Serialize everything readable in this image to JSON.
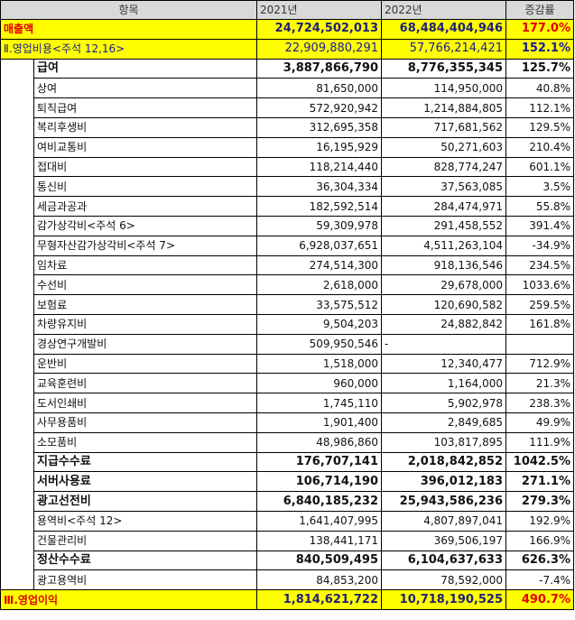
{
  "header": {
    "item": "항목",
    "y2021": "2021년",
    "y2022": "2022년",
    "rate": "증감률"
  },
  "revenue": {
    "label": "매출액",
    "y2021": "24,724,502,013",
    "y2022": "68,484,404,946",
    "rate": "177.0%"
  },
  "opex": {
    "label": "Ⅱ.영업비용<주석 12,16>",
    "y2021": "22,909,880,291",
    "y2022": "57,766,214,421",
    "rate": "152.1%"
  },
  "items": [
    {
      "label": "급여",
      "y2021": "3,887,866,790",
      "y2022": "8,776,355,345",
      "rate": "125.7%",
      "bold": true
    },
    {
      "label": "상여",
      "y2021": "81,650,000",
      "y2022": "114,950,000",
      "rate": "40.8%"
    },
    {
      "label": "퇴직급여",
      "y2021": "572,920,942",
      "y2022": "1,214,884,805",
      "rate": "112.1%"
    },
    {
      "label": "복리후생비",
      "y2021": "312,695,358",
      "y2022": "717,681,562",
      "rate": "129.5%"
    },
    {
      "label": "여비교통비",
      "y2021": "16,195,929",
      "y2022": "50,271,603",
      "rate": "210.4%"
    },
    {
      "label": "접대비",
      "y2021": "118,214,440",
      "y2022": "828,774,247",
      "rate": "601.1%"
    },
    {
      "label": "통신비",
      "y2021": "36,304,334",
      "y2022": "37,563,085",
      "rate": "3.5%"
    },
    {
      "label": "세금과공과",
      "y2021": "182,592,514",
      "y2022": "284,474,971",
      "rate": "55.8%"
    },
    {
      "label": "감가상각비<주석 6>",
      "y2021": "59,309,978",
      "y2022": "291,458,552",
      "rate": "391.4%"
    },
    {
      "label": "무형자산감가상각비<주석 7>",
      "y2021": "6,928,037,651",
      "y2022": "4,511,263,104",
      "rate": "-34.9%"
    },
    {
      "label": "임차료",
      "y2021": "274,514,300",
      "y2022": "918,136,546",
      "rate": "234.5%"
    },
    {
      "label": "수선비",
      "y2021": "2,618,000",
      "y2022": "29,678,000",
      "rate": "1033.6%"
    },
    {
      "label": "보험료",
      "y2021": "33,575,512",
      "y2022": "120,690,582",
      "rate": "259.5%"
    },
    {
      "label": "차량유지비",
      "y2021": "9,504,203",
      "y2022": "24,882,842",
      "rate": "161.8%"
    },
    {
      "label": "경상연구개발비",
      "y2021": "509,950,546",
      "y2022": "-",
      "rate": "",
      "y2022_left": true
    },
    {
      "label": "운반비",
      "y2021": "1,518,000",
      "y2022": "12,340,477",
      "rate": "712.9%"
    },
    {
      "label": "교육훈련비",
      "y2021": "960,000",
      "y2022": "1,164,000",
      "rate": "21.3%"
    },
    {
      "label": "도서인쇄비",
      "y2021": "1,745,110",
      "y2022": "5,902,978",
      "rate": "238.3%"
    },
    {
      "label": "사무용품비",
      "y2021": "1,901,400",
      "y2022": "2,849,685",
      "rate": "49.9%"
    },
    {
      "label": "소모품비",
      "y2021": "48,986,860",
      "y2022": "103,817,895",
      "rate": "111.9%"
    },
    {
      "label": "지급수수료",
      "y2021": "176,707,141",
      "y2022": "2,018,842,852",
      "rate": "1042.5%",
      "bold": true
    },
    {
      "label": "서버사용료",
      "y2021": "106,714,190",
      "y2022": "396,012,183",
      "rate": "271.1%",
      "bold": true
    },
    {
      "label": "광고선전비",
      "y2021": "6,840,185,232",
      "y2022": "25,943,586,236",
      "rate": "279.3%",
      "bold": true
    },
    {
      "label": "용역비<주석 12>",
      "y2021": "1,641,407,995",
      "y2022": "4,807,897,041",
      "rate": "192.9%"
    },
    {
      "label": "건물관리비",
      "y2021": "138,441,171",
      "y2022": "369,506,197",
      "rate": "166.9%"
    },
    {
      "label": "정산수수료",
      "y2021": "840,509,495",
      "y2022": "6,104,637,633",
      "rate": "626.3%",
      "bold": true
    },
    {
      "label": "광고용역비",
      "y2021": "84,853,200",
      "y2022": "78,592,000",
      "rate": "-7.4%"
    }
  ],
  "op_income": {
    "label": "Ⅲ.영업이익",
    "y2021": "1,814,621,722",
    "y2022": "10,718,190,525",
    "rate": "490.7%"
  },
  "colors": {
    "highlight": "#ffff00",
    "header_bg": "#d9d9d9",
    "red": "#e00000",
    "navy": "#1a1a99"
  }
}
